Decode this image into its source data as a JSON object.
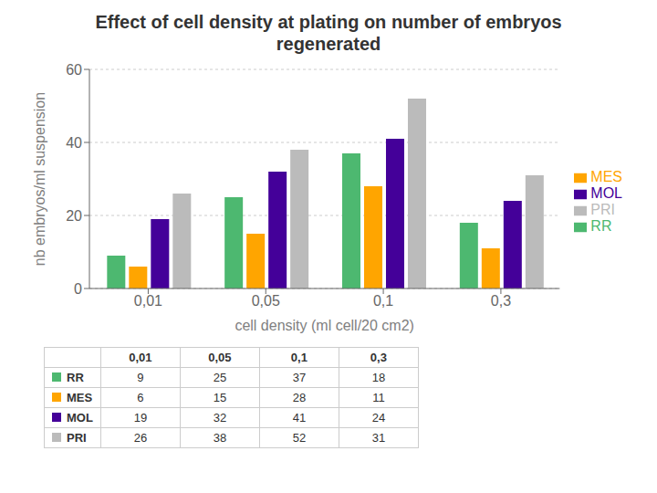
{
  "chart_data": {
    "type": "bar",
    "title": "Effect of cell density at plating on number of embryos regenerated",
    "xlabel": "cell density (ml cell/20 cm2)",
    "ylabel": "nb embryos/ml suspension",
    "categories": [
      "0,01",
      "0,05",
      "0,1",
      "0,3"
    ],
    "series": [
      {
        "name": "RR",
        "color": "#4DB870",
        "values": [
          9,
          25,
          37,
          18
        ]
      },
      {
        "name": "MES",
        "color": "#FFA500",
        "values": [
          6,
          15,
          28,
          11
        ]
      },
      {
        "name": "MOL",
        "color": "#440099",
        "values": [
          19,
          32,
          41,
          24
        ]
      },
      {
        "name": "PRI",
        "color": "#BBBBBB",
        "values": [
          26,
          38,
          52,
          31
        ]
      }
    ],
    "ylim": [
      0,
      60
    ],
    "yticks": [
      0,
      20,
      40,
      60
    ],
    "grid": true,
    "legend": "right"
  }
}
